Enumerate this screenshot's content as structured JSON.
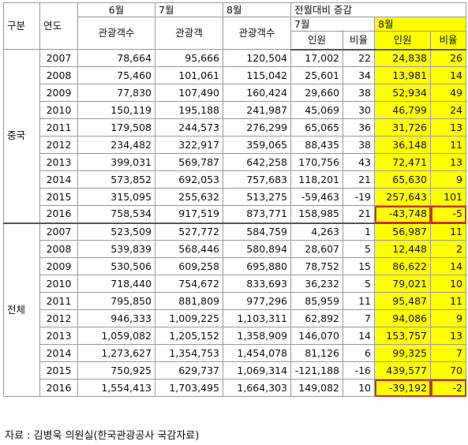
{
  "header": {
    "group": "구분",
    "year": "연도",
    "jun": "6월",
    "jul": "7월",
    "aug": "8월",
    "mom": "전월대비 증감",
    "mom_jul": "7월",
    "mom_aug": "8월",
    "col_jun": "관광객수",
    "col_jul": "관광객",
    "col_aug": "관광객수",
    "people": "인원",
    "ratio": "비율",
    "people2": "인원",
    "ratio2": "비율"
  },
  "groups": [
    {
      "label": "중국",
      "rows": [
        {
          "year": "2007",
          "jun": "78,664",
          "jul": "95,666",
          "aug": "120,504",
          "jd": "17,002",
          "jr": "22",
          "ad": "24,838",
          "ar": "26"
        },
        {
          "year": "2008",
          "jun": "75,460",
          "jul": "101,061",
          "aug": "115,042",
          "jd": "25,601",
          "jr": "34",
          "ad": "13,981",
          "ar": "14"
        },
        {
          "year": "2009",
          "jun": "77,830",
          "jul": "107,490",
          "aug": "160,424",
          "jd": "29,660",
          "jr": "38",
          "ad": "52,934",
          "ar": "49"
        },
        {
          "year": "2010",
          "jun": "150,119",
          "jul": "195,188",
          "aug": "241,987",
          "jd": "45,069",
          "jr": "30",
          "ad": "46,799",
          "ar": "24"
        },
        {
          "year": "2011",
          "jun": "179,508",
          "jul": "244,573",
          "aug": "276,299",
          "jd": "65,065",
          "jr": "36",
          "ad": "31,726",
          "ar": "13"
        },
        {
          "year": "2012",
          "jun": "234,482",
          "jul": "322,917",
          "aug": "359,065",
          "jd": "88,435",
          "jr": "38",
          "ad": "36,148",
          "ar": "11"
        },
        {
          "year": "2013",
          "jun": "399,031",
          "jul": "569,787",
          "aug": "642,258",
          "jd": "170,756",
          "jr": "43",
          "ad": "72,471",
          "ar": "13"
        },
        {
          "year": "2014",
          "jun": "573,852",
          "jul": "692,053",
          "aug": "757,683",
          "jd": "118,201",
          "jr": "21",
          "ad": "65,630",
          "ar": "9"
        },
        {
          "year": "2015",
          "jun": "315,095",
          "jul": "255,632",
          "aug": "513,275",
          "jd": "-59,463",
          "jr": "-19",
          "ad": "257,643",
          "ar": "101"
        },
        {
          "year": "2016",
          "jun": "758,534",
          "jul": "917,519",
          "aug": "873,771",
          "jd": "158,985",
          "jr": "21",
          "ad": "-43,748",
          "ar": "-5",
          "boxed": true
        }
      ]
    },
    {
      "label": "전체",
      "rows": [
        {
          "year": "2007",
          "jun": "523,509",
          "jul": "527,772",
          "aug": "584,759",
          "jd": "4,263",
          "jr": "1",
          "ad": "56,987",
          "ar": "11"
        },
        {
          "year": "2008",
          "jun": "539,839",
          "jul": "568,446",
          "aug": "580,894",
          "jd": "28,607",
          "jr": "5",
          "ad": "12,448",
          "ar": "2"
        },
        {
          "year": "2009",
          "jun": "530,506",
          "jul": "609,258",
          "aug": "695,880",
          "jd": "78,752",
          "jr": "15",
          "ad": "86,622",
          "ar": "14"
        },
        {
          "year": "2010",
          "jun": "718,440",
          "jul": "754,672",
          "aug": "833,693",
          "jd": "36,232",
          "jr": "5",
          "ad": "79,021",
          "ar": "10"
        },
        {
          "year": "2011",
          "jun": "795,850",
          "jul": "881,809",
          "aug": "977,296",
          "jd": "85,959",
          "jr": "11",
          "ad": "95,487",
          "ar": "11"
        },
        {
          "year": "2012",
          "jun": "946,333",
          "jul": "1,009,225",
          "aug": "1,103,311",
          "jd": "62,892",
          "jr": "7",
          "ad": "94,086",
          "ar": "9"
        },
        {
          "year": "2013",
          "jun": "1,059,082",
          "jul": "1,205,152",
          "aug": "1,358,909",
          "jd": "146,070",
          "jr": "14",
          "ad": "153,757",
          "ar": "13"
        },
        {
          "year": "2014",
          "jun": "1,273,627",
          "jul": "1,354,753",
          "aug": "1,454,078",
          "jd": "81,126",
          "jr": "6",
          "ad": "99,325",
          "ar": "7"
        },
        {
          "year": "2015",
          "jun": "750,925",
          "jul": "629,737",
          "aug": "1,069,314",
          "jd": "-121,188",
          "jr": "-16",
          "ad": "439,577",
          "ar": "70"
        },
        {
          "year": "2016",
          "jun": "1,554,413",
          "jul": "1,703,495",
          "aug": "1,664,303",
          "jd": "149,082",
          "jr": "10",
          "ad": "-39,192",
          "ar": "-2",
          "boxed": true
        }
      ]
    }
  ],
  "source": "자료 : 김병욱 의원실(한국관광공사 국감자료)",
  "colors": {
    "highlight": "#ffff00",
    "box": "#c0392b",
    "border": "#9a9a9a"
  }
}
